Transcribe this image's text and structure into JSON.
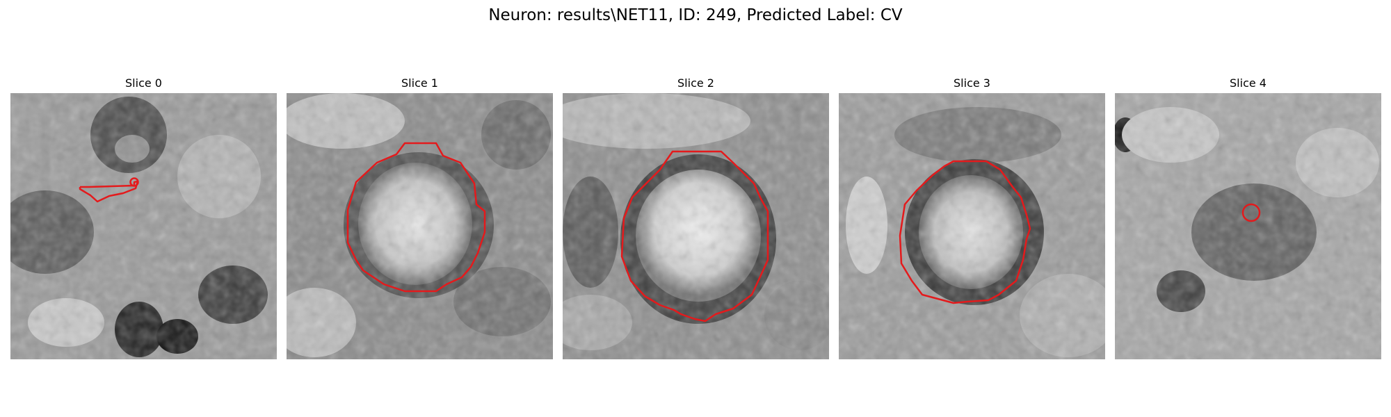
{
  "figure": {
    "title": "Neuron: results\\NET11, ID: 249, Predicted Label: CV"
  },
  "colors": {
    "contour": "#e41a1c",
    "background": "#ffffff"
  },
  "panels": [
    {
      "label": "Slice 0"
    },
    {
      "label": "Slice 1"
    },
    {
      "label": "Slice 2"
    },
    {
      "label": "Slice 3"
    },
    {
      "label": "Slice 4"
    }
  ]
}
